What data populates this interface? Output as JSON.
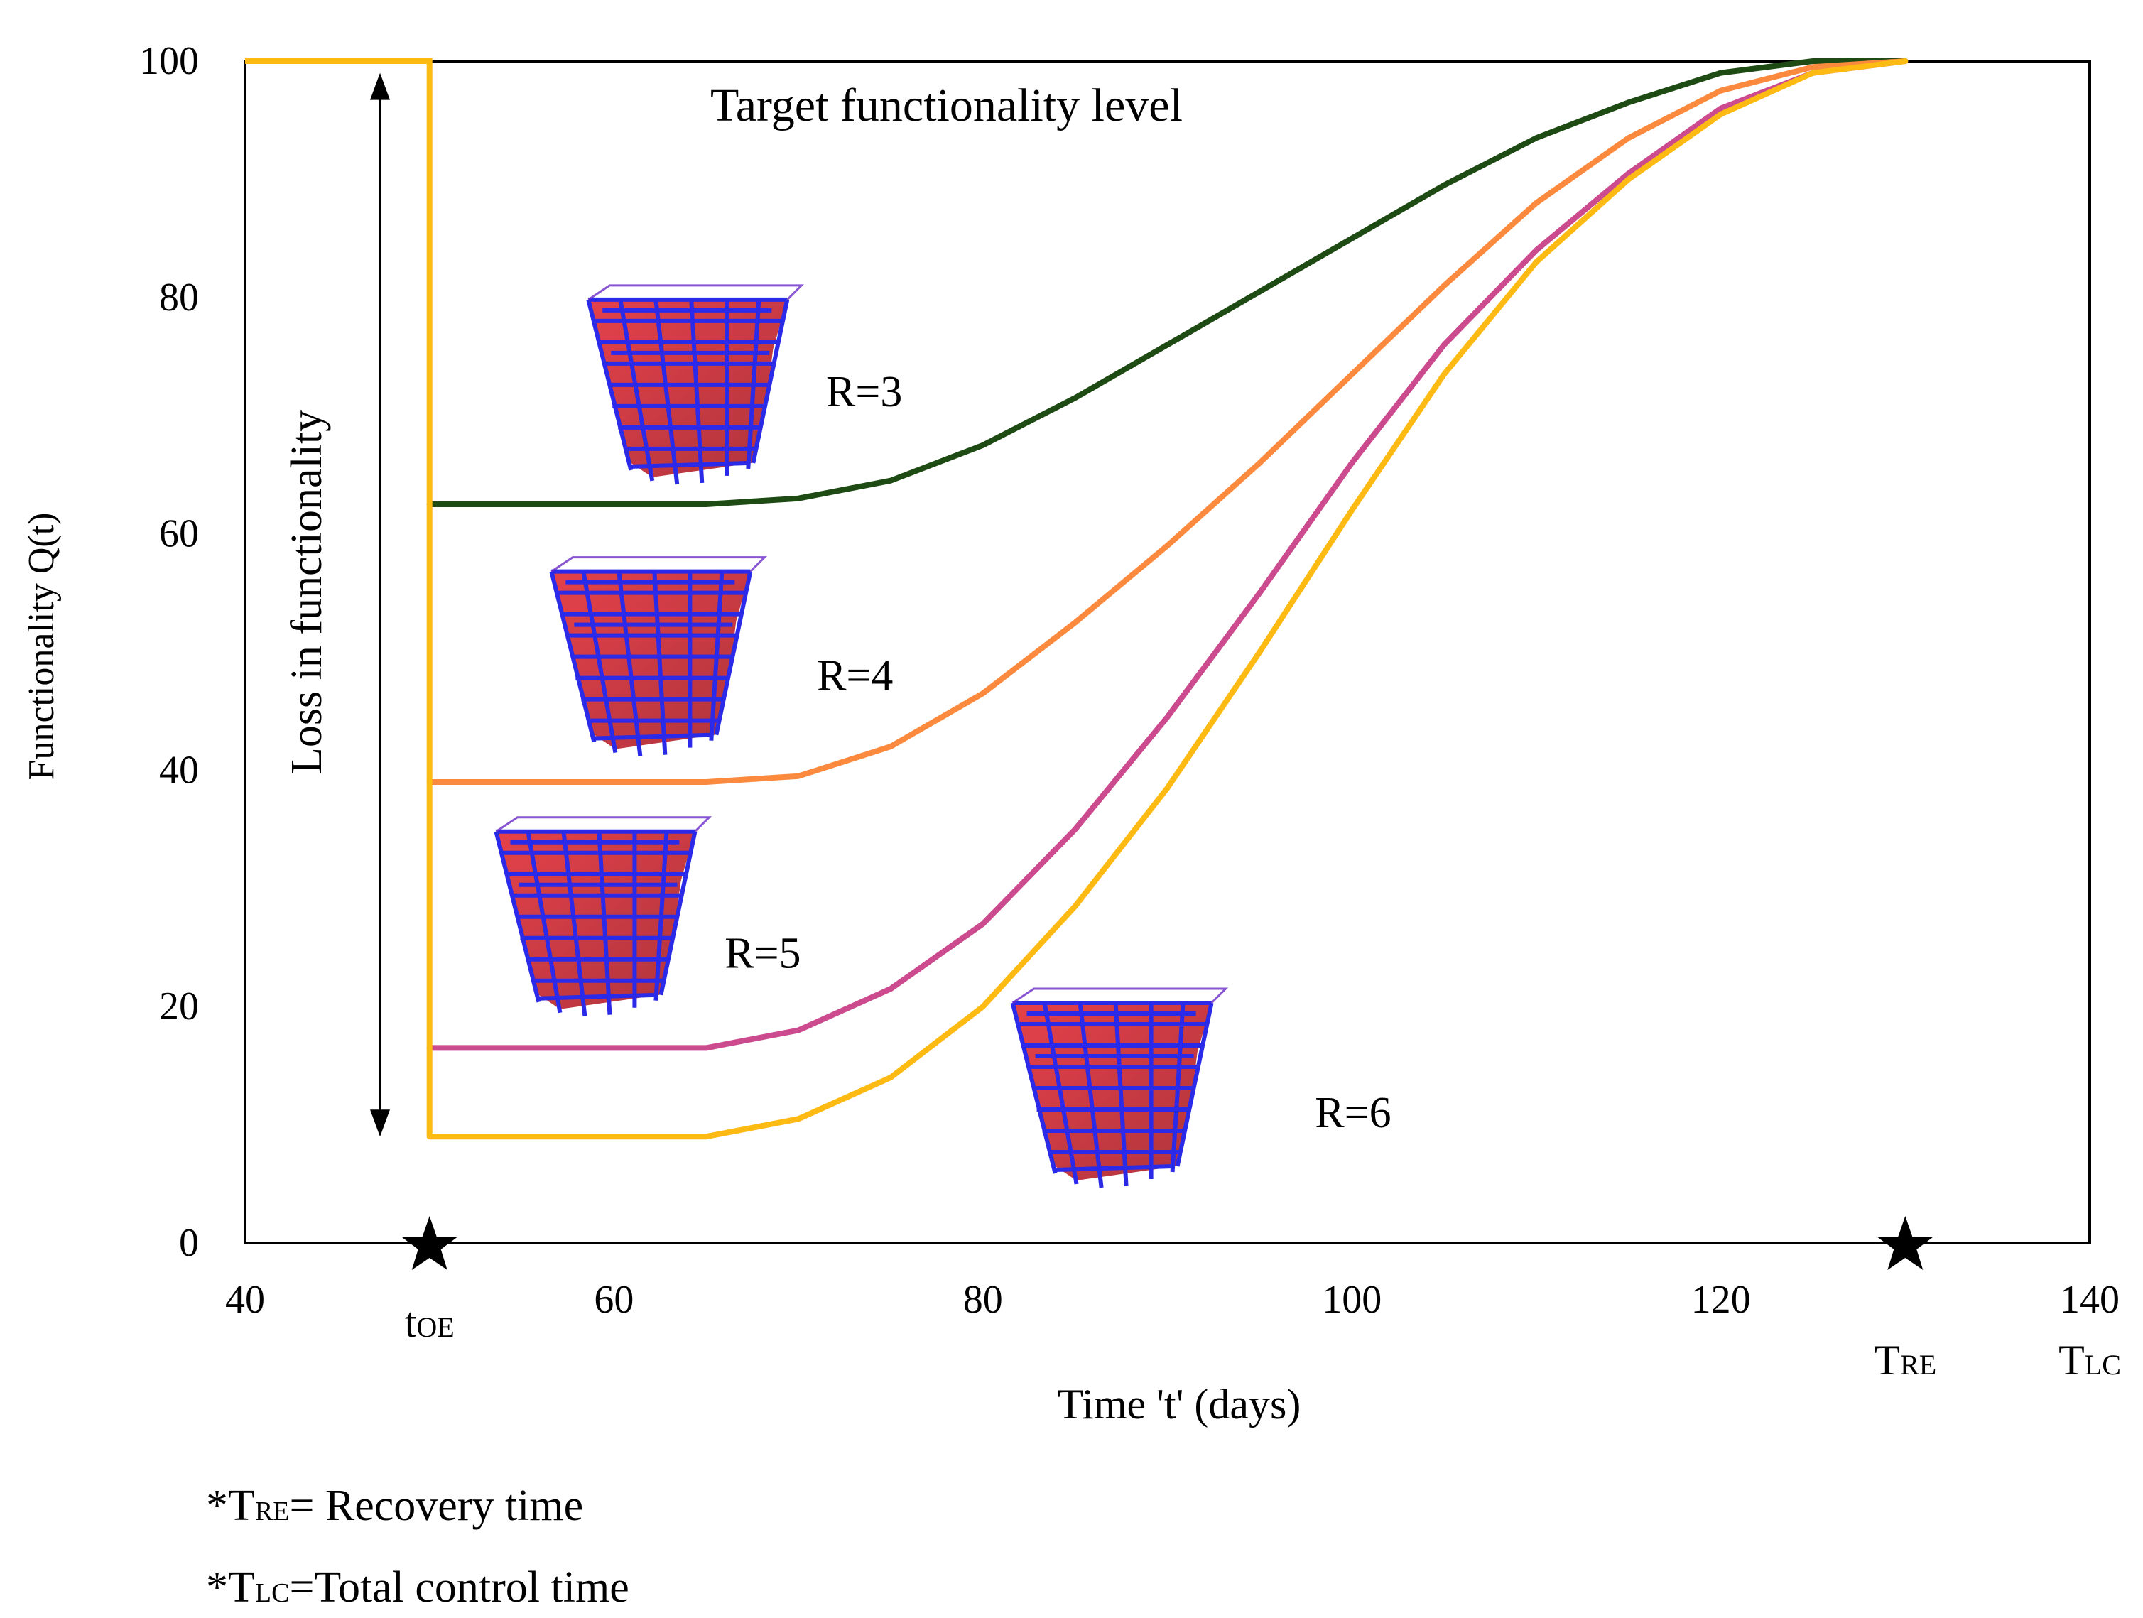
{
  "chart_data": {
    "type": "line",
    "title": "",
    "xlabel": "Time 't' (days)",
    "ylabel": "Functionality Q(t)",
    "xlim": [
      40,
      140
    ],
    "ylim": [
      0,
      100
    ],
    "xticks": [
      40,
      60,
      80,
      100,
      120,
      140
    ],
    "yticks": [
      0,
      20,
      40,
      60,
      80,
      100
    ],
    "grid": false,
    "annotations": {
      "target": "Target functionality level",
      "loss": "Loss in functionality",
      "arrow_top": 99,
      "arrow_bottom": 9
    },
    "event_markers": [
      {
        "base": "t",
        "sub": "OE",
        "x": 50
      },
      {
        "base": "T",
        "sub": "RE",
        "x": 130
      },
      {
        "base": "T",
        "sub": "LC",
        "x": 140
      }
    ],
    "initial_drop": {
      "x": 50,
      "from": 100,
      "to": 9,
      "pre_event_x": [
        40,
        50
      ],
      "color": "#fcba12"
    },
    "series": [
      {
        "name": "R=3",
        "color": "#1e4a14",
        "x": [
          50,
          55,
          60,
          65,
          70,
          75,
          80,
          85,
          90,
          95,
          100,
          105,
          110,
          115,
          120,
          125,
          130
        ],
        "y": [
          62.5,
          62.5,
          62.5,
          62.5,
          63,
          64.5,
          67.5,
          71.5,
          76,
          80.5,
          85,
          89.5,
          93.5,
          96.5,
          99,
          100,
          100
        ]
      },
      {
        "name": "R=4",
        "color": "#fb8a3e",
        "x": [
          50,
          55,
          60,
          65,
          70,
          75,
          80,
          85,
          90,
          95,
          100,
          105,
          110,
          115,
          120,
          125,
          130
        ],
        "y": [
          39,
          39,
          39,
          39,
          39.5,
          42,
          46.5,
          52.5,
          59,
          66,
          73.5,
          81,
          88,
          93.5,
          97.5,
          99.5,
          100
        ]
      },
      {
        "name": "R=5",
        "color": "#cc4a8e",
        "x": [
          50,
          55,
          60,
          65,
          70,
          75,
          80,
          85,
          90,
          95,
          100,
          105,
          110,
          115,
          120,
          125,
          130
        ],
        "y": [
          16.5,
          16.5,
          16.5,
          16.5,
          18,
          21.5,
          27,
          35,
          44.5,
          55,
          66,
          76,
          84,
          90.5,
          96,
          99,
          100
        ]
      },
      {
        "name": "R=6",
        "color": "#fcba12",
        "x": [
          50,
          55,
          60,
          65,
          70,
          75,
          80,
          85,
          90,
          95,
          100,
          105,
          110,
          115,
          120,
          125,
          130
        ],
        "y": [
          9,
          9,
          9,
          9,
          10.5,
          14,
          20,
          28.5,
          38.5,
          50,
          62,
          73.5,
          83,
          90,
          95.5,
          99,
          100
        ]
      }
    ],
    "building_icons": [
      {
        "label": "R=3",
        "x": 64,
        "y": 72
      },
      {
        "label": "R=4",
        "x": 62,
        "y": 49
      },
      {
        "label": "R=5",
        "x": 59,
        "y": 27
      },
      {
        "label": "R=6",
        "x": 87,
        "y": 12.5
      }
    ],
    "label_positions": [
      {
        "label": "R=3",
        "x": 71.5,
        "y": 72
      },
      {
        "label": "R=4",
        "x": 71,
        "y": 48
      },
      {
        "label": "R=5",
        "x": 66,
        "y": 24.5
      },
      {
        "label": "R=6",
        "x": 98,
        "y": 11
      }
    ]
  },
  "footnotes": [
    {
      "prefix": "*T",
      "sub": "RE",
      "suffix": "= Recovery time"
    },
    {
      "prefix": "*T",
      "sub": "LC",
      "suffix": "=Total control time"
    }
  ]
}
